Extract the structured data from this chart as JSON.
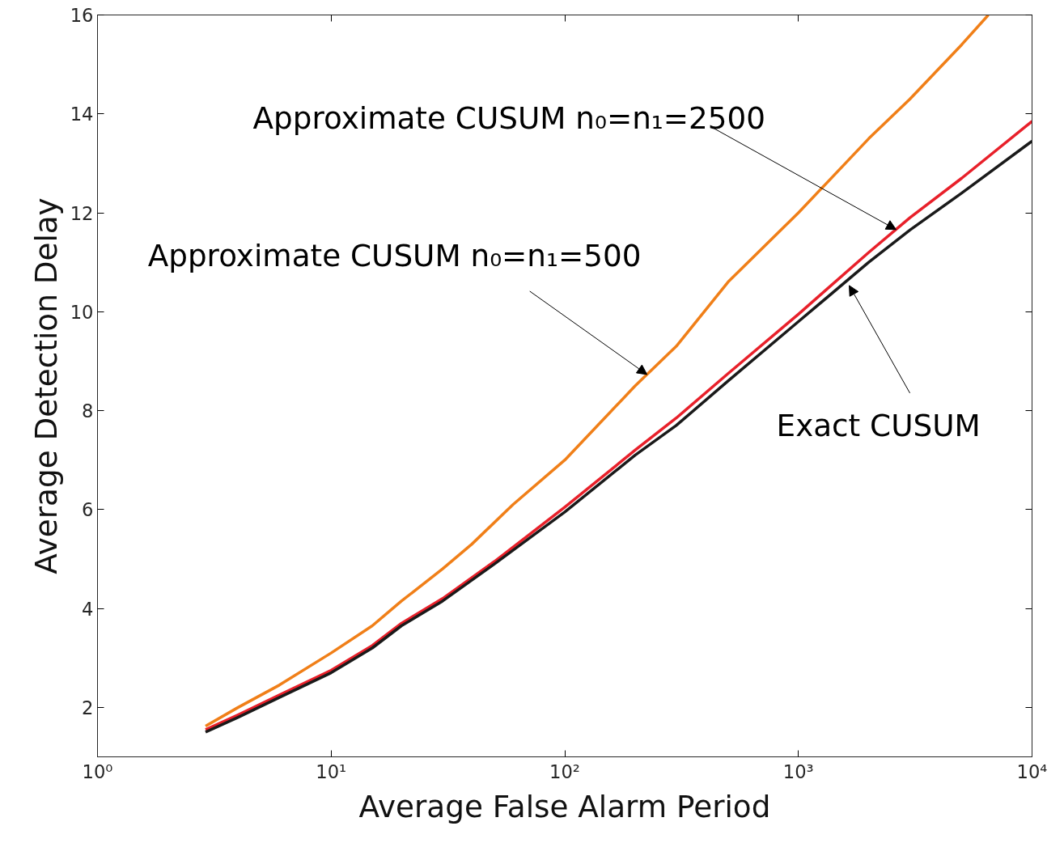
{
  "chart_data": {
    "type": "line",
    "xlabel": "Average False Alarm Period",
    "ylabel": "Average Detection Delay",
    "log": "x",
    "grid": false,
    "marker": "none",
    "line_style": "solid",
    "xlim": [
      1,
      10000
    ],
    "xticks": [
      {
        "value": 1,
        "label": "10⁰"
      },
      {
        "value": 10,
        "label": "10¹"
      },
      {
        "value": 100,
        "label": "10²"
      },
      {
        "value": 1000,
        "label": "10³"
      },
      {
        "value": 10000,
        "label": "10⁴"
      }
    ],
    "ylim": [
      1,
      16
    ],
    "yticks": [
      2,
      4,
      6,
      8,
      10,
      12,
      14,
      16
    ],
    "series": [
      {
        "color": "#f07f18",
        "x": [
          2.9,
          4,
          6,
          10,
          15,
          20,
          30,
          40,
          60,
          100,
          200,
          300,
          500,
          1000,
          2000,
          3000,
          5000,
          6500
        ],
        "values": [
          1.62,
          2.0,
          2.45,
          3.1,
          3.65,
          4.15,
          4.8,
          5.3,
          6.1,
          7.0,
          8.5,
          9.3,
          10.6,
          12.0,
          13.5,
          14.3,
          15.4,
          16.0
        ]
      },
      {
        "color": "#e8202a",
        "x": [
          2.9,
          4,
          6,
          10,
          15,
          20,
          30,
          50,
          100,
          200,
          300,
          500,
          1000,
          2000,
          3000,
          5000,
          10000
        ],
        "values": [
          1.55,
          1.85,
          2.25,
          2.75,
          3.25,
          3.7,
          4.2,
          4.95,
          6.05,
          7.2,
          7.85,
          8.75,
          9.95,
          11.2,
          11.9,
          12.7,
          13.85
        ]
      },
      {
        "color": "#1a1a1a",
        "x": [
          2.9,
          4,
          6,
          10,
          15,
          20,
          30,
          50,
          100,
          200,
          300,
          500,
          1000,
          2000,
          3000,
          5000,
          10000
        ],
        "values": [
          1.5,
          1.8,
          2.2,
          2.7,
          3.2,
          3.65,
          4.15,
          4.9,
          5.95,
          7.1,
          7.7,
          8.6,
          9.8,
          11.0,
          11.65,
          12.4,
          13.45
        ]
      }
    ],
    "annotations": [
      {
        "text": "Approximate CUSUM  n₀=n₁=2500",
        "x": 2620,
        "y": 11.66
      },
      {
        "text": "Approximate CUSUM  n₀=n₁=500",
        "x": 225,
        "y": 8.73
      },
      {
        "text": "Exact CUSUM",
        "x": 1650,
        "y": 10.53
      }
    ]
  }
}
